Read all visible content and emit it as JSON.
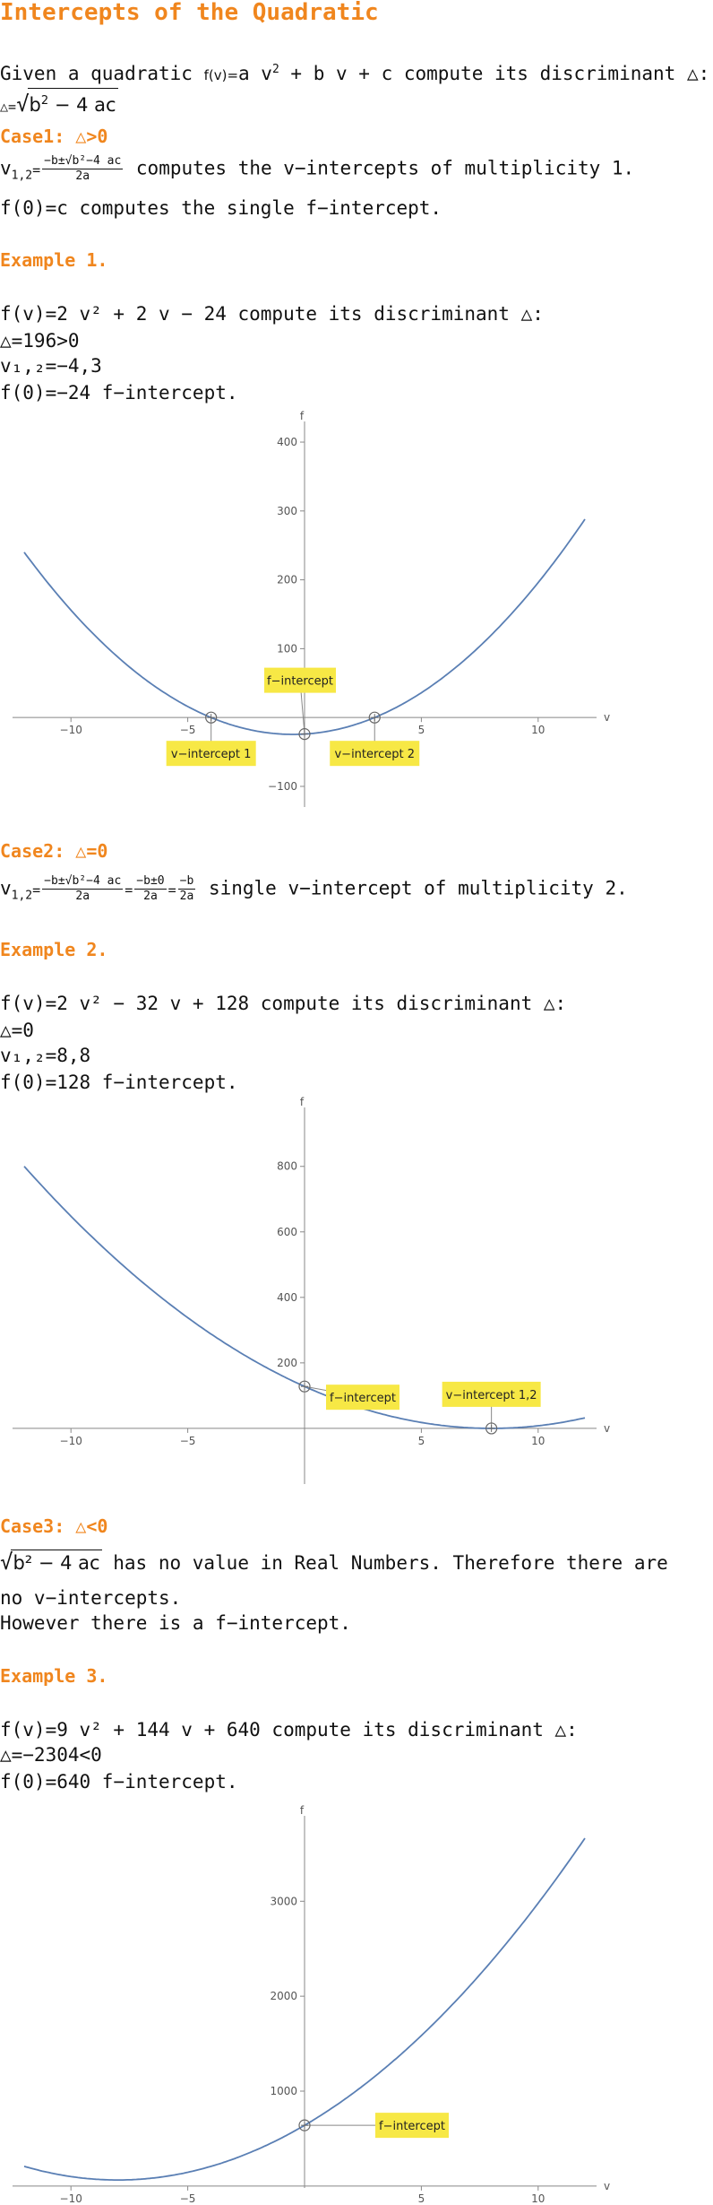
{
  "title": "Intercepts of the Quadratic",
  "intro": {
    "given": "Given a quadratic ",
    "fv": "f(v)=",
    "poly_a": "a v",
    "poly_rest": " + b v + c",
    "compute": " compute its discriminant △:",
    "disc_lhs": "△=",
    "disc_rad": "b",
    "disc_rest": " − 4 ac"
  },
  "case1": {
    "heading": "Case1: △>0",
    "lhs": "v",
    "lhs_sub": "1,2",
    "eq": "=",
    "num": "−b±√b²−4 ac",
    "den": "2a",
    "desc": " computes the v−intercepts of multiplicity 1.",
    "fline": "f(0)=c computes the single f−intercept."
  },
  "example1": {
    "heading": "Example 1.",
    "line1": "f(v)=2 v² + 2 v − 24 compute its discriminant △:",
    "line2": "△=196>0",
    "line3": "v₁,₂=−4,3",
    "line4": "f(0)=−24  f−intercept."
  },
  "case2": {
    "heading": "Case2: △=0",
    "lhs": "v",
    "lhs_sub": "1,2",
    "num1": "−b±√b²−4 ac",
    "den1": "2a",
    "num2": "−b±0",
    "den2": "2a",
    "num3": "−b",
    "den3": "2a",
    "desc": " single v−intercept of multiplicity 2."
  },
  "example2": {
    "heading": "Example 2.",
    "line1": "f(v)=2 v² − 32 v + 128 compute its discriminant △:",
    "line2": "△=0",
    "line3": "v₁,₂=8,8",
    "line4": "f(0)=128  f−intercept."
  },
  "case3": {
    "heading": "Case3: △<0",
    "rad": "b² − 4 ac",
    "line1": " has no value in Real Numbers. Therefore there are",
    "line2": "no v−intercepts.",
    "line3": "However there is a f−intercept."
  },
  "example3": {
    "heading": "Example 3.",
    "line1": "f(v)=9 v² + 144 v + 640 compute its discriminant △:",
    "line2": "△=−2304<0",
    "line3": "f(0)=640 f−intercept."
  },
  "chart_data": [
    {
      "type": "line",
      "xlabel": "v",
      "ylabel": "f",
      "xlim": [
        -12.5,
        12.5
      ],
      "ylim": [
        -130,
        430
      ],
      "coef": [
        2,
        2,
        -24
      ],
      "xticks": [
        -10,
        -5,
        5,
        10
      ],
      "yticks": [
        -100,
        100,
        200,
        300,
        400
      ],
      "points": [
        {
          "label": "v−intercept 1",
          "x": -4,
          "y": 0
        },
        {
          "label": "v−intercept 2",
          "x": 3,
          "y": 0
        },
        {
          "label": "f−intercept",
          "x": 0,
          "y": -24
        }
      ],
      "line_color": "#5a7fb4"
    },
    {
      "type": "line",
      "xlabel": "v",
      "ylabel": "f",
      "xlim": [
        -12.5,
        12.5
      ],
      "ylim": [
        -170,
        980
      ],
      "coef": [
        2,
        -32,
        128
      ],
      "xticks": [
        -10,
        -5,
        5,
        10
      ],
      "yticks": [
        200,
        400,
        600,
        800
      ],
      "points": [
        {
          "label": "f−intercept",
          "x": 0,
          "y": 128
        },
        {
          "label": "v−intercept 1,2",
          "x": 8,
          "y": 0
        }
      ],
      "line_color": "#5a7fb4"
    },
    {
      "type": "line",
      "xlabel": "v",
      "ylabel": "f",
      "xlim": [
        -12.5,
        12.5
      ],
      "ylim": [
        -20,
        3900
      ],
      "coef": [
        9,
        144,
        640
      ],
      "xticks": [
        -10,
        -5,
        5,
        10
      ],
      "yticks": [
        1000,
        2000,
        3000
      ],
      "points": [
        {
          "label": "f−intercept",
          "x": 0,
          "y": 640
        }
      ],
      "line_color": "#5a7fb4"
    }
  ]
}
